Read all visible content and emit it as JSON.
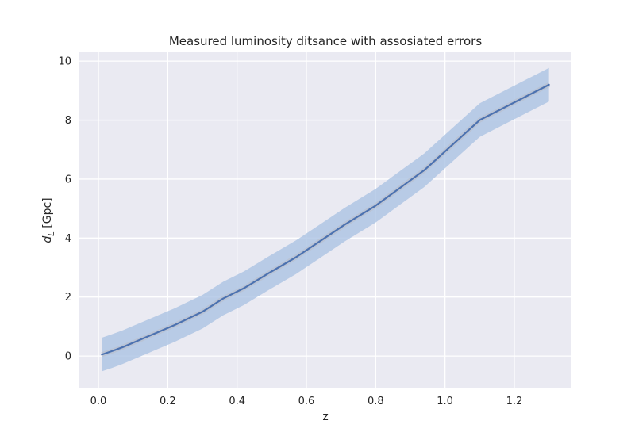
{
  "chart_data": {
    "type": "line",
    "title": "Measured luminosity ditsance with assosiated errors",
    "xlabel": "z",
    "ylabel": {
      "main": "d",
      "sub": "L",
      "unit": " [Gpc]"
    },
    "xlim": [
      -0.055,
      1.365
    ],
    "ylim": [
      -1.1,
      10.3
    ],
    "xticks": [
      0.0,
      0.2,
      0.4,
      0.6,
      0.8,
      1.0,
      1.2
    ],
    "xtick_labels": [
      "0.0",
      "0.2",
      "0.4",
      "0.6",
      "0.8",
      "1.0",
      "1.2"
    ],
    "yticks": [
      0,
      2,
      4,
      6,
      8,
      10
    ],
    "ytick_labels": [
      "0",
      "2",
      "4",
      "6",
      "8",
      "10"
    ],
    "grid": true,
    "style": "seaborn-darkgrid",
    "series": [
      {
        "color": "#4c72b0",
        "band_color": "#a9c2e3",
        "band_halfwidth": 0.57,
        "x": [
          0.01,
          0.04,
          0.07,
          0.1,
          0.14,
          0.17,
          0.22,
          0.3,
          0.36,
          0.42,
          0.49,
          0.57,
          0.64,
          0.71,
          0.8,
          0.87,
          0.94,
          1.02,
          1.1,
          1.2,
          1.3
        ],
        "y": [
          0.05,
          0.17,
          0.3,
          0.45,
          0.65,
          0.8,
          1.05,
          1.5,
          1.95,
          2.3,
          2.8,
          3.35,
          3.9,
          4.45,
          5.1,
          5.7,
          6.3,
          7.15,
          8.0,
          8.6,
          9.2
        ]
      }
    ]
  }
}
